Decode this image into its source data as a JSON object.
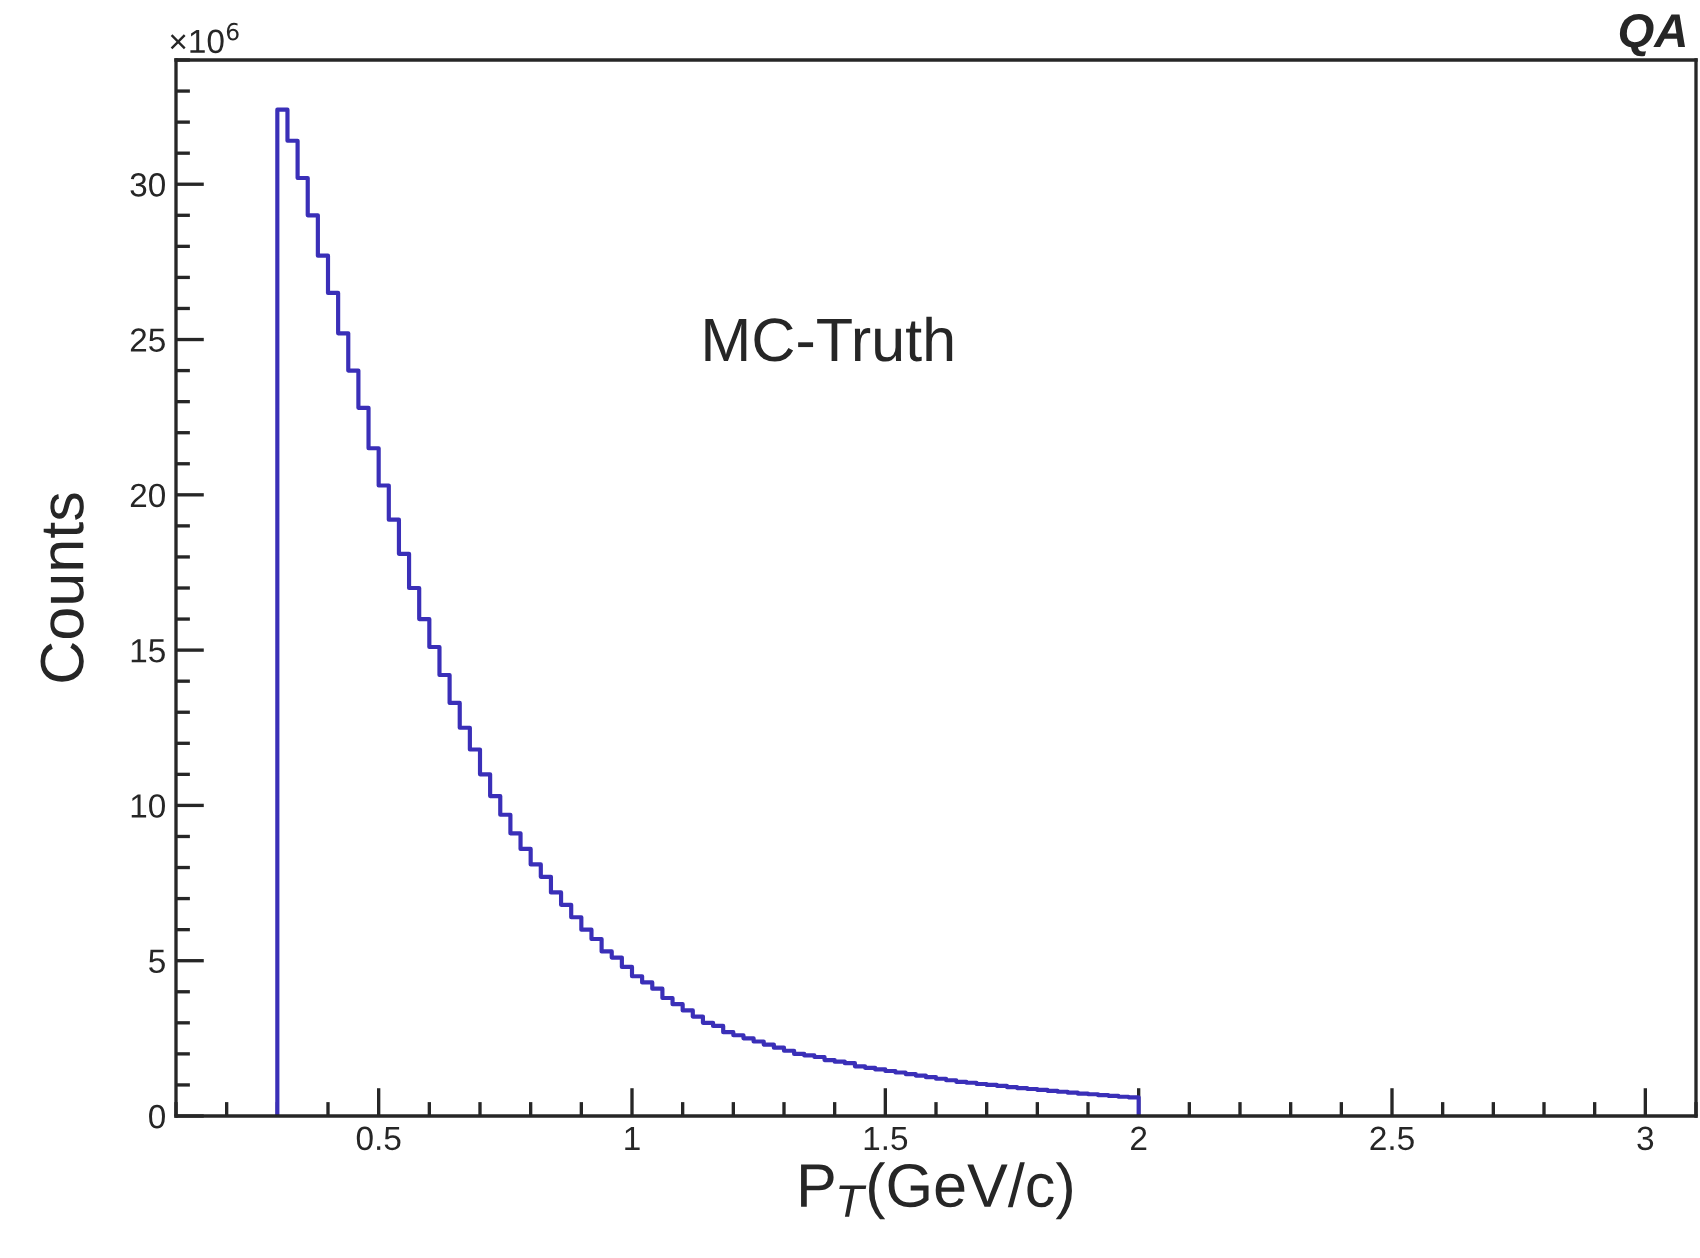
{
  "chart_data": {
    "type": "histogram",
    "xlabel": "P$_{T}$(GeV/c)",
    "ylabel": "Counts",
    "annotations": [
      "MC-Truth",
      "×10$^{6}$",
      "QA"
    ],
    "bins": [
      0.3,
      0.32,
      0.34,
      0.36,
      0.38,
      0.4,
      0.42,
      0.44,
      0.46,
      0.48,
      0.5,
      0.52,
      0.54,
      0.56,
      0.58,
      0.6,
      0.62,
      0.64,
      0.66,
      0.68,
      0.7,
      0.72,
      0.74,
      0.76,
      0.78,
      0.8,
      0.82,
      0.84,
      0.86,
      0.88,
      0.9,
      0.92,
      0.94,
      0.96,
      0.98,
      1.0,
      1.02,
      1.04,
      1.06,
      1.08,
      1.1,
      1.12,
      1.14,
      1.16,
      1.18,
      1.2,
      1.22,
      1.24,
      1.26,
      1.28,
      1.3,
      1.32,
      1.34,
      1.36,
      1.38,
      1.4,
      1.42,
      1.44,
      1.46,
      1.48,
      1.5,
      1.52,
      1.54,
      1.56,
      1.58,
      1.6,
      1.62,
      1.64,
      1.66,
      1.68,
      1.7,
      1.72,
      1.74,
      1.76,
      1.78,
      1.8,
      1.82,
      1.84,
      1.86,
      1.88,
      1.9,
      1.92,
      1.94,
      1.96,
      1.98,
      2.0
    ],
    "values": [
      32.4,
      31.4,
      30.2,
      29.0,
      27.7,
      26.5,
      25.2,
      24.0,
      22.8,
      21.5,
      20.3,
      19.2,
      18.1,
      17.0,
      16.0,
      15.1,
      14.2,
      13.3,
      12.5,
      11.8,
      11.0,
      10.3,
      9.7,
      9.1,
      8.6,
      8.1,
      7.7,
      7.2,
      6.8,
      6.4,
      6.0,
      5.7,
      5.3,
      5.1,
      4.8,
      4.5,
      4.3,
      4.1,
      3.8,
      3.6,
      3.4,
      3.2,
      3.0,
      2.9,
      2.7,
      2.6,
      2.5,
      2.4,
      2.3,
      2.2,
      2.1,
      2.0,
      1.95,
      1.9,
      1.8,
      1.75,
      1.7,
      1.6,
      1.55,
      1.5,
      1.45,
      1.4,
      1.35,
      1.3,
      1.25,
      1.2,
      1.15,
      1.1,
      1.07,
      1.03,
      1.0,
      0.97,
      0.93,
      0.9,
      0.87,
      0.84,
      0.81,
      0.78,
      0.75,
      0.72,
      0.7,
      0.67,
      0.65,
      0.62,
      0.6
    ],
    "color": "#3a2fb8",
    "xlim": [
      0.1,
      3.1
    ],
    "xticks": [
      0.5,
      1,
      1.5,
      2,
      2.5,
      3
    ],
    "ylim": [
      0,
      34
    ],
    "yticks": [
      0,
      5,
      10,
      15,
      20,
      25,
      30
    ],
    "grid": false,
    "legend": false
  }
}
